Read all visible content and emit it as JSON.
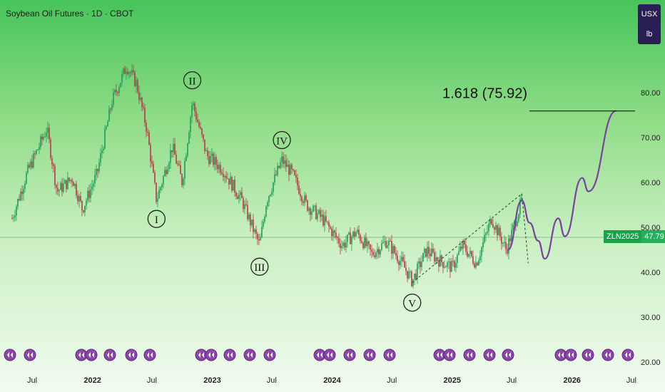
{
  "header": {
    "title": "Soybean Oil Futures · 1D · CBOT"
  },
  "currency": {
    "unit": "USX",
    "sub": "lb"
  },
  "price_tag": {
    "symbol": "ZLN2025",
    "value": "47.79"
  },
  "annotation": {
    "fib": "1.618 (75.92)"
  },
  "colors": {
    "bg_top": "#46c45a",
    "bg_bottom": "#f2fbf0",
    "up_candle": "#1f9d55",
    "down_candle": "#b23a48",
    "projection": "#7b3fa0",
    "icon_fill": "#8e44ad"
  },
  "chart_data": {
    "type": "line",
    "x_axis_labels": [
      "Jul",
      "2022",
      "Jul",
      "2023",
      "Jul",
      "2024",
      "Jul",
      "2025",
      "Jul",
      "2026",
      "Jul"
    ],
    "y_axis": {
      "ticks": [
        "80.00",
        "70.00",
        "60.00",
        "50.00",
        "40.00",
        "30.00",
        "20.00"
      ],
      "ylim": [
        20,
        85
      ]
    },
    "series": [
      {
        "values": [
          {
            "x": "2021-05-01",
            "y": 52
          },
          {
            "x": "2021-06-15",
            "y": 62
          },
          {
            "x": "2021-08-15",
            "y": 72
          },
          {
            "x": "2021-09-15",
            "y": 58
          },
          {
            "x": "2021-11-01",
            "y": 61
          },
          {
            "x": "2021-12-01",
            "y": 54
          },
          {
            "x": "2022-01-15",
            "y": 62
          },
          {
            "x": "2022-03-01",
            "y": 78
          },
          {
            "x": "2022-04-15",
            "y": 86
          },
          {
            "x": "2022-05-15",
            "y": 82
          },
          {
            "x": "2022-06-15",
            "y": 72
          },
          {
            "x": "2022-07-15",
            "y": 56
          },
          {
            "x": "2022-09-01",
            "y": 68
          },
          {
            "x": "2022-10-01",
            "y": 60
          },
          {
            "x": "2022-11-01",
            "y": 78
          },
          {
            "x": "2022-12-15",
            "y": 66
          },
          {
            "x": "2023-02-01",
            "y": 63
          },
          {
            "x": "2023-04-01",
            "y": 56
          },
          {
            "x": "2023-05-25",
            "y": 46
          },
          {
            "x": "2023-06-15",
            "y": 56
          },
          {
            "x": "2023-08-01",
            "y": 65
          },
          {
            "x": "2023-09-01",
            "y": 62
          },
          {
            "x": "2023-10-15",
            "y": 55
          },
          {
            "x": "2023-12-01",
            "y": 52
          },
          {
            "x": "2024-02-01",
            "y": 46
          },
          {
            "x": "2024-03-15",
            "y": 49
          },
          {
            "x": "2024-05-01",
            "y": 44
          },
          {
            "x": "2024-06-15",
            "y": 47
          },
          {
            "x": "2024-08-01",
            "y": 42
          },
          {
            "x": "2024-09-01",
            "y": 38
          },
          {
            "x": "2024-10-15",
            "y": 45
          },
          {
            "x": "2024-11-15",
            "y": 43
          },
          {
            "x": "2025-01-01",
            "y": 41
          },
          {
            "x": "2025-02-01",
            "y": 46
          },
          {
            "x": "2025-03-15",
            "y": 42
          },
          {
            "x": "2025-05-01",
            "y": 52
          },
          {
            "x": "2025-06-15",
            "y": 45
          },
          {
            "x": "2025-08-01",
            "y": 56
          }
        ]
      },
      {
        "values": [
          {
            "x": "2025-06-20",
            "y": 45
          },
          {
            "x": "2025-08-01",
            "y": 56
          },
          {
            "x": "2025-08-25",
            "y": 51
          },
          {
            "x": "2025-09-20",
            "y": 47
          },
          {
            "x": "2025-10-10",
            "y": 43
          },
          {
            "x": "2025-11-20",
            "y": 52
          },
          {
            "x": "2025-12-10",
            "y": 48
          },
          {
            "x": "2026-02-01",
            "y": 61
          },
          {
            "x": "2026-02-20",
            "y": 58
          },
          {
            "x": "2026-05-15",
            "y": 75.92
          }
        ]
      }
    ],
    "wave_labels": [
      "I",
      "II",
      "III",
      "IV",
      "V"
    ],
    "fib_level": 75.92,
    "grid": false
  }
}
